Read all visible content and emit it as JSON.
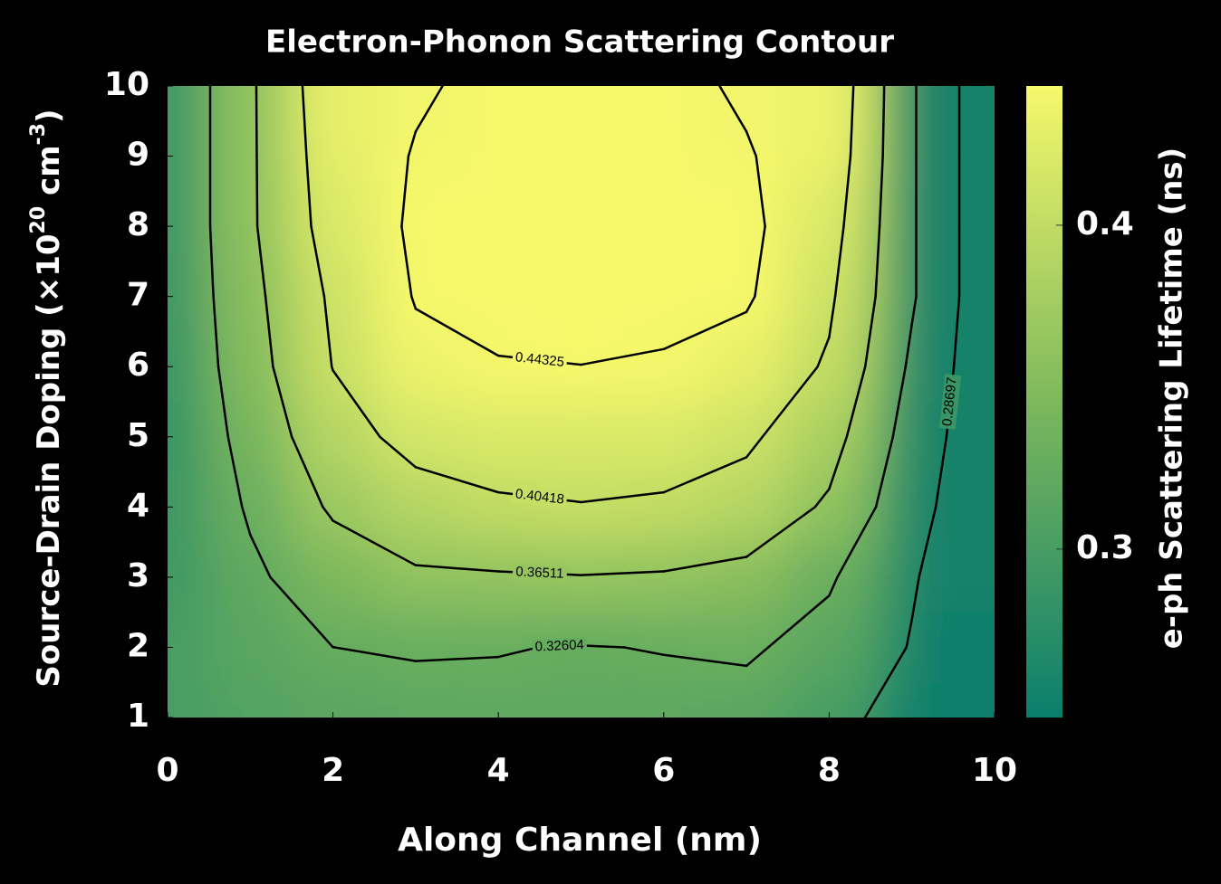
{
  "chart_data": {
    "type": "contour",
    "title": "Electron-Phonon Scattering Contour",
    "xlabel": "Along Channel (nm)",
    "ylabel": [
      "Source-Drain Doping (×10",
      "20",
      " cm",
      "-3",
      ")"
    ],
    "colorbar_label": "e-ph Scattering Lifetime (ns)",
    "x": [
      0,
      1,
      2,
      3,
      4,
      5,
      6,
      7,
      8,
      9,
      10
    ],
    "y": [
      1,
      2,
      3,
      4,
      5,
      6,
      7,
      8,
      9,
      10
    ],
    "z": [
      [
        0.3,
        0.31,
        0.315,
        0.318,
        0.32,
        0.32,
        0.318,
        0.315,
        0.3,
        0.27,
        0.25
      ],
      [
        0.3,
        0.315,
        0.326,
        0.328,
        0.327,
        0.325,
        0.327,
        0.33,
        0.315,
        0.285,
        0.25
      ],
      [
        0.295,
        0.32,
        0.345,
        0.36,
        0.362,
        0.364,
        0.362,
        0.355,
        0.33,
        0.29,
        0.255
      ],
      [
        0.29,
        0.33,
        0.37,
        0.39,
        0.4,
        0.403,
        0.4,
        0.39,
        0.36,
        0.3,
        0.255
      ],
      [
        0.288,
        0.34,
        0.39,
        0.415,
        0.42,
        0.42,
        0.42,
        0.41,
        0.38,
        0.31,
        0.255
      ],
      [
        0.288,
        0.35,
        0.405,
        0.435,
        0.442,
        0.443,
        0.441,
        0.43,
        0.4,
        0.32,
        0.255
      ],
      [
        0.29,
        0.355,
        0.41,
        0.445,
        0.45,
        0.452,
        0.45,
        0.447,
        0.41,
        0.33,
        0.255
      ],
      [
        0.29,
        0.36,
        0.42,
        0.448,
        0.455,
        0.456,
        0.455,
        0.45,
        0.42,
        0.33,
        0.255
      ],
      [
        0.29,
        0.36,
        0.425,
        0.445,
        0.452,
        0.455,
        0.452,
        0.445,
        0.43,
        0.33,
        0.255
      ],
      [
        0.29,
        0.36,
        0.43,
        0.44,
        0.45,
        0.455,
        0.45,
        0.44,
        0.435,
        0.33,
        0.255
      ]
    ],
    "levels": [
      0.2479,
      0.28697,
      0.32604,
      0.36511,
      0.40418,
      0.44325
    ],
    "xlim": [
      0,
      10
    ],
    "xticks": [
      0,
      2,
      4,
      6,
      8,
      10
    ],
    "ylim": [
      1,
      10
    ],
    "yticks": [
      1,
      2,
      3,
      4,
      5,
      6,
      7,
      8,
      9,
      10
    ],
    "clim": [
      0.248,
      0.443
    ],
    "cticks": [
      0.3,
      0.4
    ],
    "colormap": [
      "#0a7e6c",
      "#7db85c",
      "#f6f86b"
    ],
    "line_color": "#000000"
  }
}
